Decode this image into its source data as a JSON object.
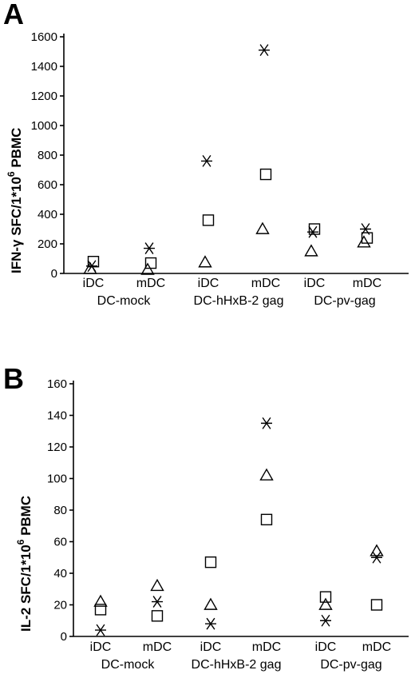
{
  "chart_data": [
    {
      "panel": "A",
      "type": "scatter",
      "ylabel_main": "IFN-γ SFC/1*10",
      "ylabel_sup": "6",
      "ylabel_tail": " PBMC",
      "ylim": [
        0,
        1600
      ],
      "yticks": [
        "0",
        "200",
        "400",
        "600",
        "800",
        "1000",
        "1200",
        "1400",
        "1600"
      ],
      "categories": [
        "iDC",
        "mDC",
        "iDC",
        "mDC",
        "iDC",
        "mDC"
      ],
      "groups": [
        "DC-mock",
        "DC-hHxB-2 gag",
        "DC-pv-gag"
      ],
      "series": [
        {
          "marker": "asterisk",
          "values": [
            50,
            170,
            760,
            1510,
            280,
            300
          ]
        },
        {
          "marker": "square",
          "values": [
            80,
            70,
            360,
            670,
            300,
            240
          ]
        },
        {
          "marker": "triangle",
          "values": [
            30,
            25,
            75,
            300,
            150,
            210
          ]
        }
      ]
    },
    {
      "panel": "B",
      "type": "scatter",
      "ylabel_main": "IL-2 SFC/1*10",
      "ylabel_sup": "6",
      "ylabel_tail": " PBMC",
      "ylim": [
        0,
        160
      ],
      "yticks": [
        "0",
        "20",
        "40",
        "60",
        "80",
        "100",
        "120",
        "140",
        "160"
      ],
      "categories": [
        "iDC",
        "mDC",
        "iDC",
        "mDC",
        "iDC",
        "mDC"
      ],
      "groups": [
        "DC-mock",
        "DC-hHxB-2 gag",
        "DC-pv-gag"
      ],
      "series": [
        {
          "marker": "asterisk",
          "values": [
            4,
            22,
            8,
            135,
            10,
            50
          ]
        },
        {
          "marker": "square",
          "values": [
            17,
            13,
            47,
            74,
            25,
            20
          ]
        },
        {
          "marker": "triangle",
          "values": [
            22,
            32,
            20,
            102,
            20,
            54
          ]
        }
      ]
    }
  ]
}
